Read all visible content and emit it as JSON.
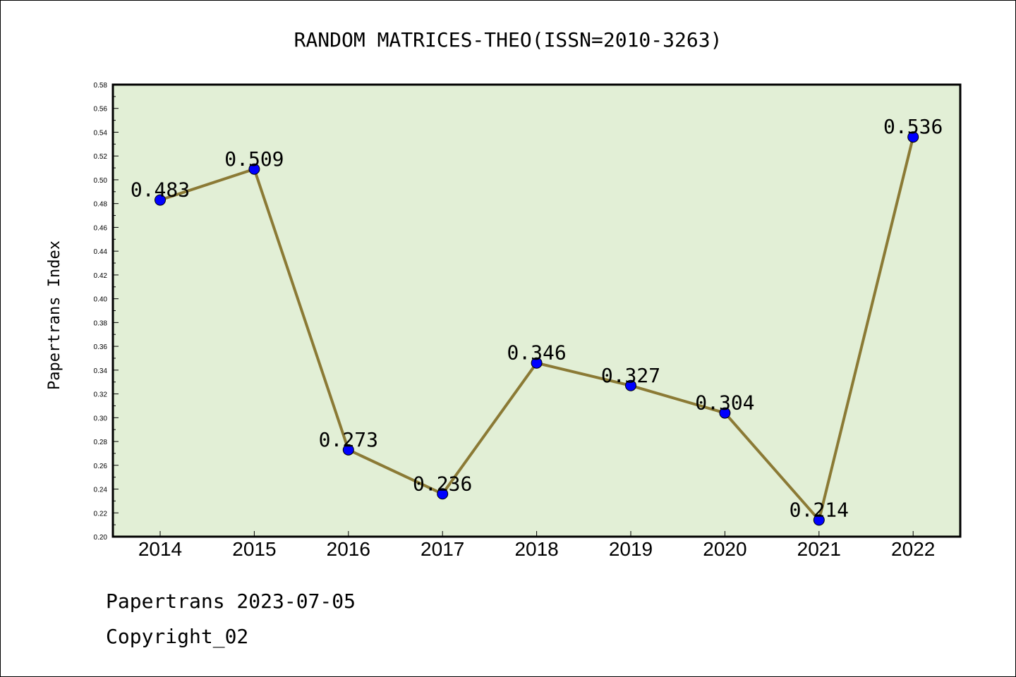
{
  "chart_data": {
    "type": "line",
    "title": "RANDOM MATRICES-THEO(ISSN=2010-3263)",
    "xlabel": "",
    "ylabel": "Papertrans Index",
    "categories": [
      "2014",
      "2015",
      "2016",
      "2017",
      "2018",
      "2019",
      "2020",
      "2021",
      "2022"
    ],
    "values": [
      0.483,
      0.509,
      0.273,
      0.236,
      0.346,
      0.327,
      0.304,
      0.214,
      0.536
    ],
    "data_labels": [
      "0.483",
      "0.509",
      "0.273",
      "0.236",
      "0.346",
      "0.327",
      "0.304",
      "0.214",
      "0.536"
    ],
    "ylim": [
      0.2,
      0.58
    ],
    "yticks": [
      "0.20",
      "0.22",
      "0.24",
      "0.26",
      "0.28",
      "0.30",
      "0.32",
      "0.34",
      "0.36",
      "0.38",
      "0.40",
      "0.42",
      "0.44",
      "0.46",
      "0.48",
      "0.50",
      "0.52",
      "0.54",
      "0.56",
      "0.58"
    ],
    "grid": false,
    "colors": {
      "plot_background": "#e2efd6",
      "line": "#8b7a35",
      "marker": "#0000ff"
    }
  },
  "footer": {
    "line1": "Papertrans 2023-07-05",
    "line2": "Copyright_02"
  }
}
